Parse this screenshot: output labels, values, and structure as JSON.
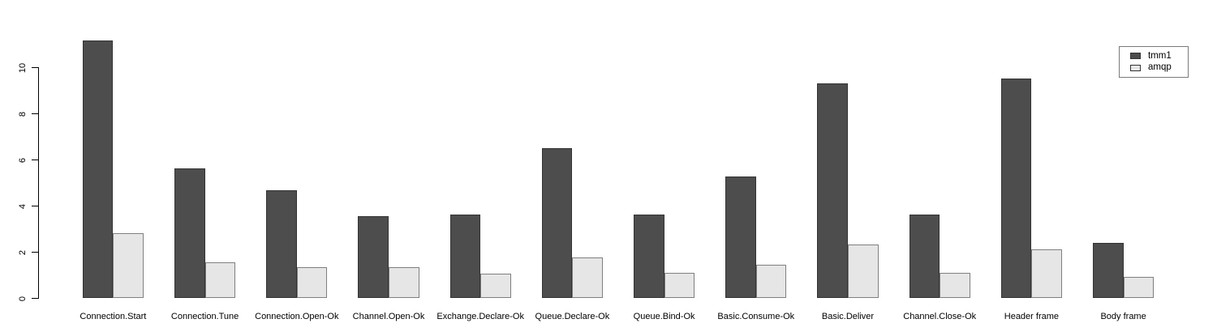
{
  "chart_data": {
    "type": "bar",
    "title": "",
    "xlabel": "",
    "ylabel": "",
    "categories": [
      "Connection.Start",
      "Connection.Tune",
      "Connection.Open-Ok",
      "Channel.Open-Ok",
      "Exchange.Declare-Ok",
      "Queue.Declare-Ok",
      "Queue.Bind-Ok",
      "Basic.Consume-Ok",
      "Basic.Deliver",
      "Channel.Close-Ok",
      "Header frame",
      "Body frame"
    ],
    "series": [
      {
        "name": "tmm1",
        "color": "#4d4d4d",
        "border_color": "#333333",
        "values": [
          11.15,
          5.6,
          4.65,
          3.55,
          3.6,
          6.5,
          3.6,
          5.25,
          9.3,
          3.6,
          9.5,
          2.4
        ]
      },
      {
        "name": "amqp",
        "color": "#e6e6e6",
        "border_color": "#7f7f7f",
        "values": [
          2.8,
          1.55,
          1.35,
          1.35,
          1.05,
          1.75,
          1.1,
          1.45,
          2.3,
          1.1,
          2.1,
          0.9
        ]
      }
    ],
    "yticks": [
      0,
      2,
      4,
      6,
      8,
      10
    ],
    "ylim": [
      0,
      11.6
    ],
    "grid": false,
    "legend_position": "top-right"
  }
}
